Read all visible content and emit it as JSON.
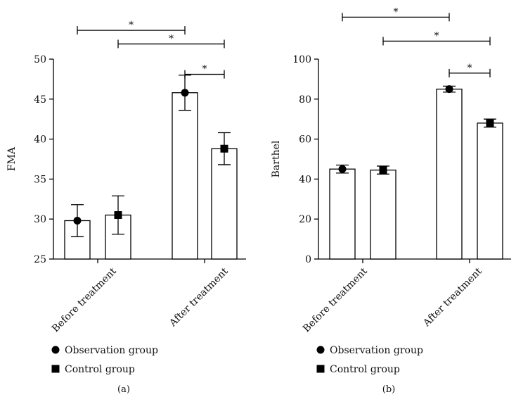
{
  "legend": {
    "observation": "Observation group",
    "control": "Control group"
  },
  "chart_data": [
    {
      "type": "bar",
      "panel_label": "(a)",
      "title": "",
      "xlabel": "",
      "ylabel": "FMA",
      "ylim": [
        25,
        50
      ],
      "yticks": [
        25,
        30,
        35,
        40,
        45,
        50
      ],
      "categories": [
        "Before treatment",
        "After treatment"
      ],
      "series": [
        {
          "name": "Observation group",
          "marker": "circle",
          "values": [
            29.8,
            45.8
          ],
          "errors": [
            2.0,
            2.2
          ]
        },
        {
          "name": "Control group",
          "marker": "square",
          "values": [
            30.5,
            38.8
          ],
          "errors": [
            2.4,
            2.0
          ]
        }
      ],
      "significance": [
        {
          "from": [
            0,
            0
          ],
          "to": [
            1,
            0
          ],
          "label": "*",
          "level": 53.6
        },
        {
          "from": [
            0,
            1
          ],
          "to": [
            1,
            1
          ],
          "label": "*",
          "level": 51.9
        },
        {
          "from": [
            1,
            0
          ],
          "to": [
            1,
            1
          ],
          "label": "*",
          "level": 48.1
        }
      ]
    },
    {
      "type": "bar",
      "panel_label": "(b)",
      "title": "",
      "xlabel": "",
      "ylabel": "Barthel",
      "ylim": [
        0,
        100
      ],
      "yticks": [
        0,
        20,
        40,
        60,
        80,
        100
      ],
      "categories": [
        "Before treatment",
        "After treatment"
      ],
      "series": [
        {
          "name": "Observation group",
          "marker": "circle",
          "values": [
            45,
            85
          ],
          "errors": [
            2.0,
            1.5
          ]
        },
        {
          "name": "Control group",
          "marker": "square",
          "values": [
            44.5,
            68
          ],
          "errors": [
            2.0,
            2.0
          ]
        }
      ],
      "significance": [
        {
          "from": [
            0,
            0
          ],
          "to": [
            1,
            0
          ],
          "label": "*",
          "level": 121
        },
        {
          "from": [
            0,
            1
          ],
          "to": [
            1,
            1
          ],
          "label": "*",
          "level": 109
        },
        {
          "from": [
            1,
            0
          ],
          "to": [
            1,
            1
          ],
          "label": "*",
          "level": 93
        }
      ]
    }
  ]
}
